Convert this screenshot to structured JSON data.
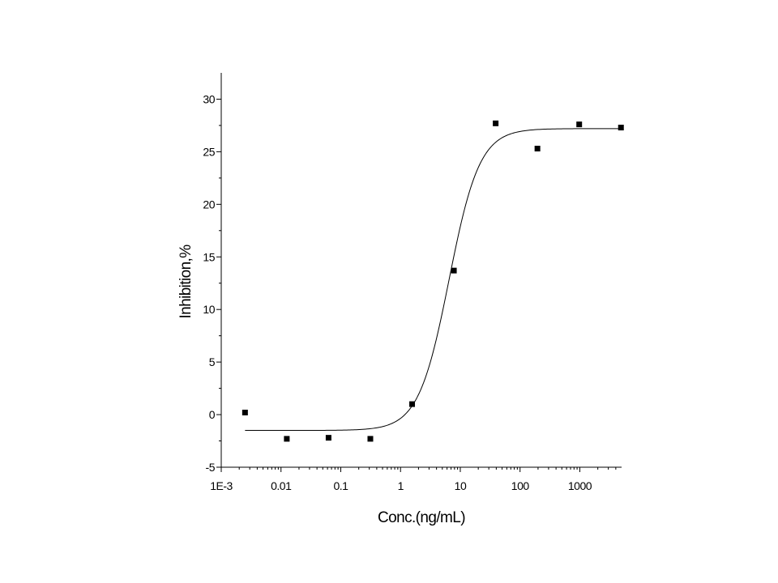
{
  "chart_data": {
    "type": "scatter",
    "xlabel": "Conc.(ng/mL)",
    "ylabel": "Inhibition,%",
    "xscale": "log",
    "xlim": [
      0.001,
      5000
    ],
    "ylim": [
      -5,
      32.5
    ],
    "x_ticks": [
      {
        "value": 0.001,
        "label": "1E-3"
      },
      {
        "value": 0.01,
        "label": "0.01"
      },
      {
        "value": 0.1,
        "label": "0.1"
      },
      {
        "value": 1,
        "label": "1"
      },
      {
        "value": 10,
        "label": "10"
      },
      {
        "value": 100,
        "label": "100"
      },
      {
        "value": 1000,
        "label": "1000"
      }
    ],
    "y_ticks": [
      {
        "value": -5,
        "label": "-5"
      },
      {
        "value": 0,
        "label": "0"
      },
      {
        "value": 5,
        "label": "5"
      },
      {
        "value": 10,
        "label": "10"
      },
      {
        "value": 15,
        "label": "15"
      },
      {
        "value": 20,
        "label": "20"
      },
      {
        "value": 25,
        "label": "25"
      },
      {
        "value": 30,
        "label": "30"
      }
    ],
    "points": [
      {
        "x": 0.0025,
        "y": 0.2
      },
      {
        "x": 0.0125,
        "y": -2.3
      },
      {
        "x": 0.0625,
        "y": -2.2
      },
      {
        "x": 0.3125,
        "y": -2.3
      },
      {
        "x": 1.5625,
        "y": 1.0
      },
      {
        "x": 7.8125,
        "y": 13.7
      },
      {
        "x": 39.0625,
        "y": 27.7
      },
      {
        "x": 195.3125,
        "y": 25.3
      },
      {
        "x": 976.5625,
        "y": 27.6
      },
      {
        "x": 4882.8125,
        "y": 27.3
      }
    ],
    "fit": {
      "model": "4PL",
      "bottom": -1.5,
      "top": 27.2,
      "ec50": 6.5,
      "hill": 1.7,
      "x_range": [
        0.0025,
        4882.8125
      ]
    },
    "grid": false,
    "legend": "none"
  }
}
